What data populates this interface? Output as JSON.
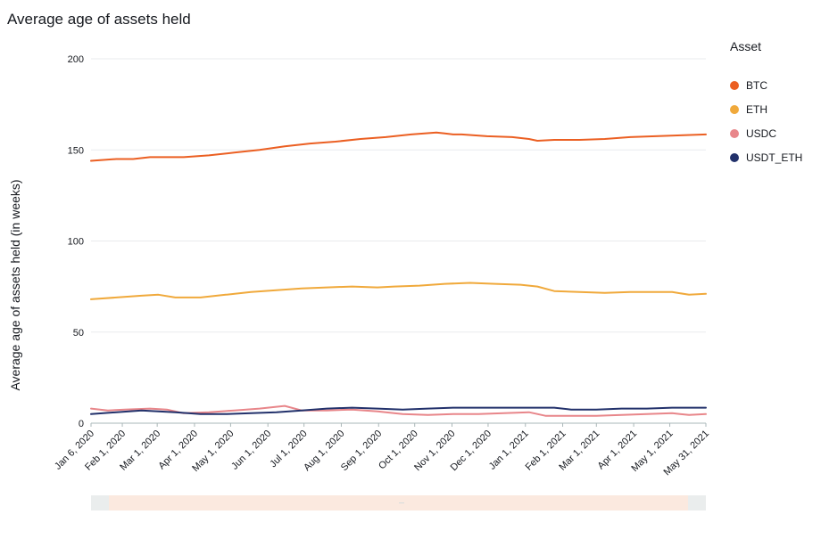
{
  "page": {
    "title": "Average age of assets held"
  },
  "legend": {
    "title": "Asset",
    "items": [
      {
        "label": "BTC",
        "color": "#eb5f22"
      },
      {
        "label": "ETH",
        "color": "#f0a93b"
      },
      {
        "label": "USDC",
        "color": "#e8868a"
      },
      {
        "label": "USDT_ETH",
        "color": "#22316b"
      }
    ]
  },
  "chart_data": {
    "type": "line",
    "title": "Average age of assets held",
    "xlabel": "",
    "ylabel": "Average age of assets held (in weeks)",
    "ylim": [
      0,
      200
    ],
    "yticks": [
      0,
      50,
      100,
      150,
      200
    ],
    "grid": true,
    "legend_position": "right",
    "xlim": [
      "2020-01-06",
      "2021-05-31"
    ],
    "xticks": [
      {
        "date": "2020-01-06",
        "label": "Jan 6, 2020"
      },
      {
        "date": "2020-02-01",
        "label": "Feb 1, 2020"
      },
      {
        "date": "2020-03-01",
        "label": "Mar 1, 2020"
      },
      {
        "date": "2020-04-01",
        "label": "Apr 1, 2020"
      },
      {
        "date": "2020-05-01",
        "label": "May 1, 2020"
      },
      {
        "date": "2020-06-01",
        "label": "Jun 1, 2020"
      },
      {
        "date": "2020-07-01",
        "label": "Jul 1, 2020"
      },
      {
        "date": "2020-08-01",
        "label": "Aug 1, 2020"
      },
      {
        "date": "2020-09-01",
        "label": "Sep 1, 2020"
      },
      {
        "date": "2020-10-01",
        "label": "Oct 1, 2020"
      },
      {
        "date": "2020-11-01",
        "label": "Nov 1, 2020"
      },
      {
        "date": "2020-12-01",
        "label": "Dec 1, 2020"
      },
      {
        "date": "2021-01-01",
        "label": "Jan 1, 2021"
      },
      {
        "date": "2021-02-01",
        "label": "Feb 1, 2021"
      },
      {
        "date": "2021-03-01",
        "label": "Mar 1, 2021"
      },
      {
        "date": "2021-04-01",
        "label": "Apr 1, 2021"
      },
      {
        "date": "2021-05-01",
        "label": "May 1, 2021"
      },
      {
        "date": "2021-05-31",
        "label": "May 31, 2021"
      }
    ],
    "series": [
      {
        "name": "BTC",
        "color": "#eb5f22",
        "x": [
          "2020-01-06",
          "2020-01-27",
          "2020-02-10",
          "2020-02-24",
          "2020-03-09",
          "2020-03-23",
          "2020-04-13",
          "2020-05-04",
          "2020-05-25",
          "2020-06-15",
          "2020-07-06",
          "2020-07-27",
          "2020-08-17",
          "2020-09-07",
          "2020-09-28",
          "2020-10-19",
          "2020-10-26",
          "2020-11-02",
          "2020-11-09",
          "2020-11-30",
          "2020-12-21",
          "2021-01-04",
          "2021-01-11",
          "2021-01-25",
          "2021-02-15",
          "2021-03-08",
          "2021-03-29",
          "2021-04-19",
          "2021-05-10",
          "2021-05-31"
        ],
        "y": [
          144,
          145,
          145,
          146,
          146,
          146,
          147,
          148.5,
          150,
          152,
          153.5,
          154.5,
          156,
          157,
          158.5,
          159.5,
          159,
          158.5,
          158.5,
          157.5,
          157,
          156,
          155,
          155.5,
          155.5,
          156,
          157,
          157.5,
          158,
          158.5
        ]
      },
      {
        "name": "ETH",
        "color": "#f0a93b",
        "x": [
          "2020-01-06",
          "2020-01-27",
          "2020-02-17",
          "2020-03-02",
          "2020-03-16",
          "2020-04-06",
          "2020-04-27",
          "2020-05-18",
          "2020-06-08",
          "2020-06-29",
          "2020-07-20",
          "2020-08-10",
          "2020-08-31",
          "2020-09-14",
          "2020-10-05",
          "2020-10-26",
          "2020-11-16",
          "2020-12-07",
          "2020-12-28",
          "2021-01-11",
          "2021-01-25",
          "2021-02-15",
          "2021-03-08",
          "2021-03-29",
          "2021-04-19",
          "2021-05-03",
          "2021-05-17",
          "2021-05-31"
        ],
        "y": [
          68,
          69,
          70,
          70.5,
          69,
          69,
          70.5,
          72,
          73,
          74,
          74.5,
          75,
          74.5,
          75,
          75.5,
          76.5,
          77,
          76.5,
          76,
          75,
          72.5,
          72,
          71.5,
          72,
          72,
          72,
          70.5,
          71
        ]
      },
      {
        "name": "USDC",
        "color": "#e8868a",
        "x": [
          "2020-01-06",
          "2020-01-20",
          "2020-02-03",
          "2020-02-24",
          "2020-03-09",
          "2020-03-23",
          "2020-04-13",
          "2020-05-04",
          "2020-05-25",
          "2020-06-08",
          "2020-06-15",
          "2020-06-29",
          "2020-07-20",
          "2020-08-10",
          "2020-08-31",
          "2020-09-21",
          "2020-10-12",
          "2020-11-02",
          "2020-11-23",
          "2020-12-14",
          "2021-01-04",
          "2021-01-18",
          "2021-02-08",
          "2021-03-01",
          "2021-03-22",
          "2021-04-12",
          "2021-05-03",
          "2021-05-17",
          "2021-05-31"
        ],
        "y": [
          8,
          7,
          7.5,
          8,
          7.5,
          5.5,
          6,
          7,
          8,
          9,
          9.5,
          7,
          7,
          7.5,
          6.5,
          5,
          4.5,
          5,
          5,
          5.5,
          6,
          4,
          4,
          4,
          4.5,
          5,
          5.5,
          4.5,
          5
        ]
      },
      {
        "name": "USDT_ETH",
        "color": "#22316b",
        "x": [
          "2020-01-06",
          "2020-01-27",
          "2020-02-17",
          "2020-03-02",
          "2020-03-16",
          "2020-04-06",
          "2020-04-27",
          "2020-05-18",
          "2020-06-08",
          "2020-06-29",
          "2020-07-20",
          "2020-08-10",
          "2020-08-31",
          "2020-09-21",
          "2020-10-12",
          "2020-11-02",
          "2020-11-23",
          "2020-12-14",
          "2021-01-04",
          "2021-01-25",
          "2021-02-08",
          "2021-03-01",
          "2021-03-22",
          "2021-04-12",
          "2021-05-03",
          "2021-05-17",
          "2021-05-31"
        ],
        "y": [
          5,
          6,
          7,
          6.5,
          6,
          5,
          5,
          5.5,
          6,
          7,
          8,
          8.5,
          8,
          7.5,
          8,
          8.5,
          8.5,
          8.5,
          8.5,
          8.5,
          7.5,
          7.5,
          8,
          8,
          8.5,
          8.5,
          8.5
        ]
      }
    ]
  }
}
